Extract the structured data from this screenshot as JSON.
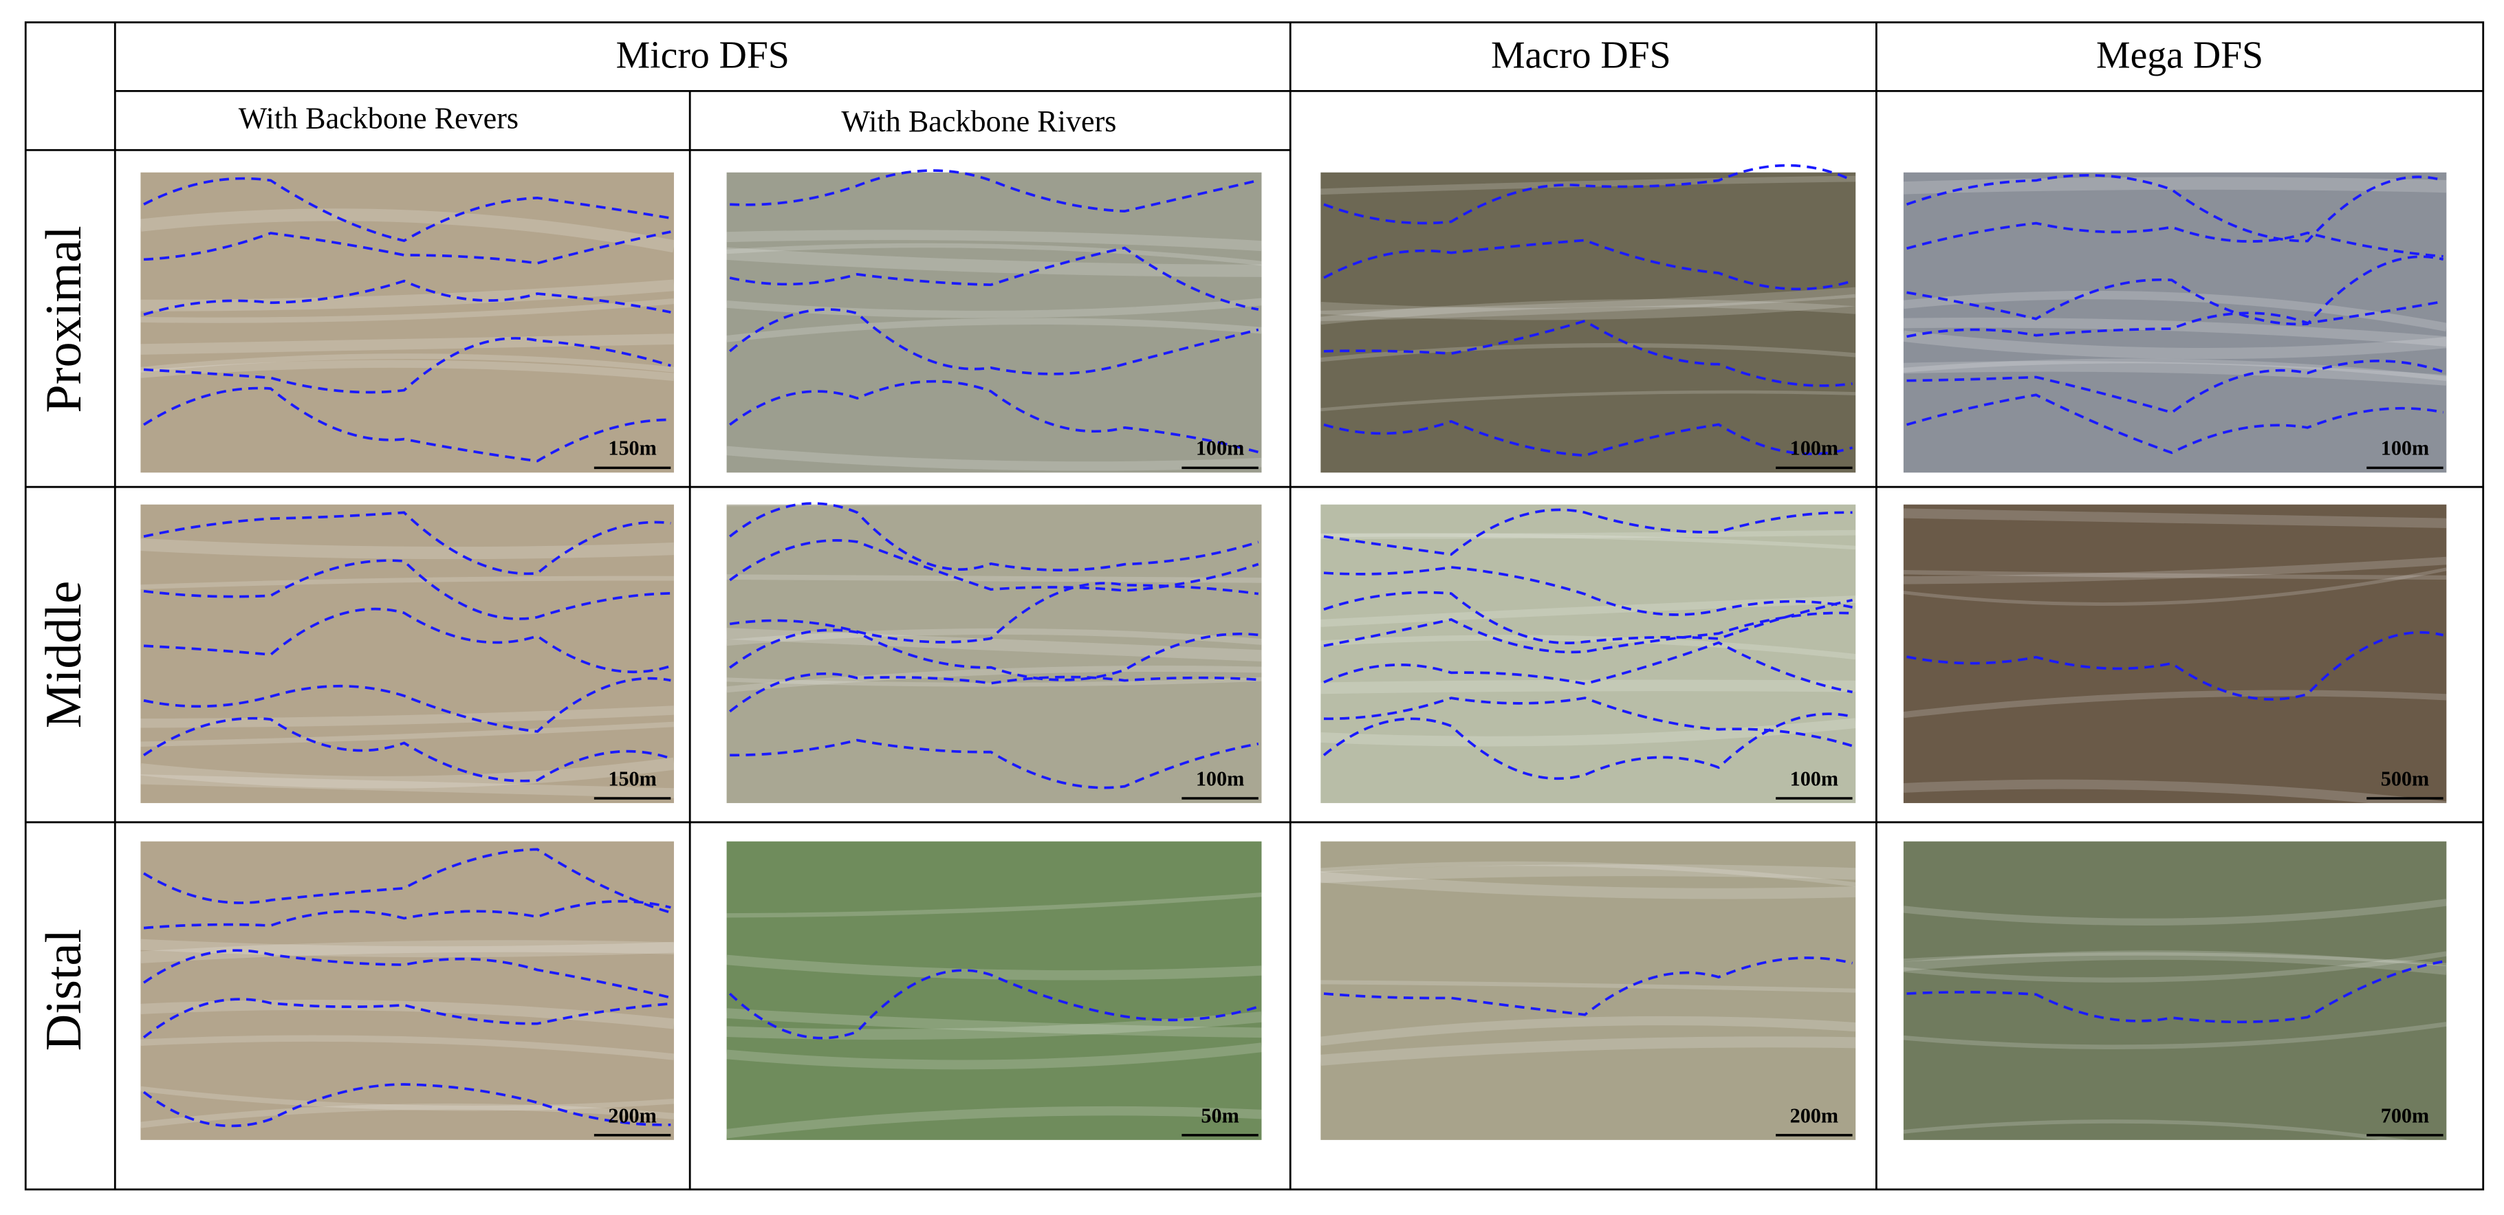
{
  "table": {
    "header": {
      "groups": [
        "Micro DFS",
        "Macro DFS",
        "Mega DFS"
      ],
      "subheaders": [
        "With Backbone Revers",
        "With Backbone Rivers"
      ]
    },
    "rows": [
      {
        "label": "Proximal",
        "scales": [
          "150m",
          "100m",
          "100m",
          "100m"
        ]
      },
      {
        "label": "Middle",
        "scales": [
          "150m",
          "100m",
          "100m",
          "500m"
        ]
      },
      {
        "label": "Distal",
        "scales": [
          "200m",
          "50m",
          "200m",
          "700m"
        ]
      }
    ]
  }
}
